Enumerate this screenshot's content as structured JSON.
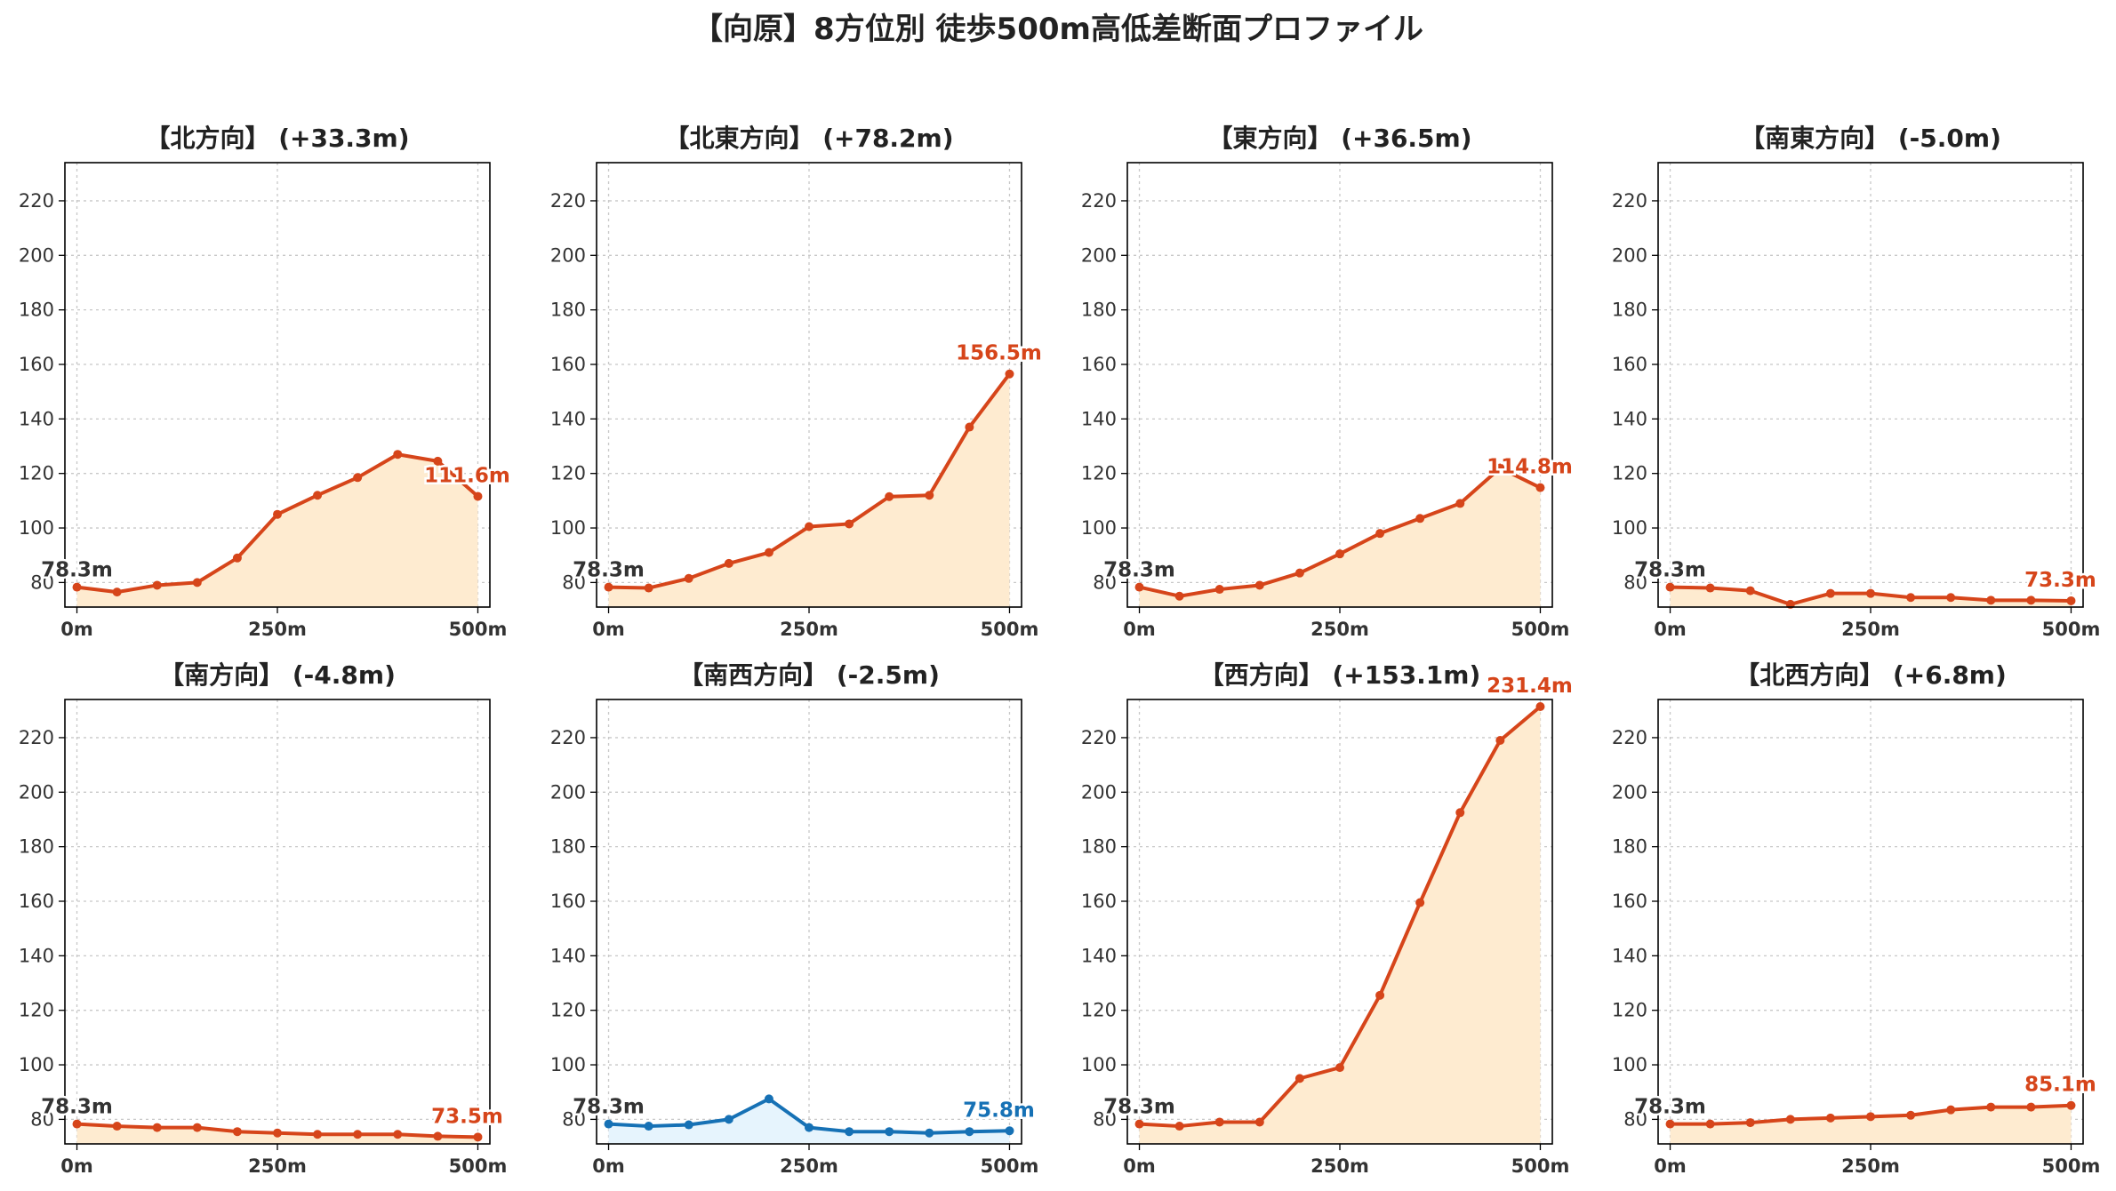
{
  "suptitle": "【向原】8方位別 徒歩500m高低差断面プロファイル",
  "colors": {
    "ascent_line": "#d6451a",
    "ascent_fill": "#feebd0",
    "descent_line": "#1671b5",
    "descent_fill": "#e6f4fd"
  },
  "chart_data": [
    {
      "type": "area",
      "title": "【北方向】 (+33.3m)",
      "x": [
        0,
        50,
        100,
        150,
        200,
        250,
        300,
        350,
        400,
        450,
        500
      ],
      "y": [
        78.3,
        76.5,
        79.0,
        80.0,
        89.0,
        105.0,
        112.0,
        118.5,
        127.0,
        124.5,
        111.6
      ],
      "start_label": "78.3m",
      "end_label": "111.6m",
      "color": "ascent",
      "xticks": [
        "0m",
        "250m",
        "500m"
      ],
      "yticks": [
        80,
        100,
        120,
        140,
        160,
        180,
        200,
        220
      ],
      "xlim": [
        -15,
        515
      ],
      "ylim": [
        71,
        234
      ],
      "grid": true
    },
    {
      "type": "area",
      "title": "【北東方向】 (+78.2m)",
      "x": [
        0,
        50,
        100,
        150,
        200,
        250,
        300,
        350,
        400,
        450,
        500
      ],
      "y": [
        78.3,
        78.0,
        81.5,
        87.0,
        91.0,
        100.5,
        101.5,
        111.5,
        112.0,
        137.0,
        156.5
      ],
      "start_label": "78.3m",
      "end_label": "156.5m",
      "color": "ascent",
      "xticks": [
        "0m",
        "250m",
        "500m"
      ],
      "yticks": [
        80,
        100,
        120,
        140,
        160,
        180,
        200,
        220
      ],
      "xlim": [
        -15,
        515
      ],
      "ylim": [
        71,
        234
      ],
      "grid": true
    },
    {
      "type": "area",
      "title": "【東方向】 (+36.5m)",
      "x": [
        0,
        50,
        100,
        150,
        200,
        250,
        300,
        350,
        400,
        450,
        500
      ],
      "y": [
        78.3,
        75.0,
        77.5,
        79.0,
        83.5,
        90.5,
        98.0,
        103.5,
        109.0,
        122.0,
        114.8
      ],
      "start_label": "78.3m",
      "end_label": "114.8m",
      "color": "ascent",
      "xticks": [
        "0m",
        "250m",
        "500m"
      ],
      "yticks": [
        80,
        100,
        120,
        140,
        160,
        180,
        200,
        220
      ],
      "xlim": [
        -15,
        515
      ],
      "ylim": [
        71,
        234
      ],
      "grid": true
    },
    {
      "type": "area",
      "title": "【南東方向】 (-5.0m)",
      "x": [
        0,
        50,
        100,
        150,
        200,
        250,
        300,
        350,
        400,
        450,
        500
      ],
      "y": [
        78.3,
        78.0,
        77.0,
        72.0,
        76.0,
        76.0,
        74.5,
        74.5,
        73.5,
        73.5,
        73.3
      ],
      "start_label": "78.3m",
      "end_label": "73.3m",
      "color": "ascent",
      "xticks": [
        "0m",
        "250m",
        "500m"
      ],
      "yticks": [
        80,
        100,
        120,
        140,
        160,
        180,
        200,
        220
      ],
      "xlim": [
        -15,
        515
      ],
      "ylim": [
        71,
        234
      ],
      "grid": true
    },
    {
      "type": "area",
      "title": "【南方向】 (-4.8m)",
      "x": [
        0,
        50,
        100,
        150,
        200,
        250,
        300,
        350,
        400,
        450,
        500
      ],
      "y": [
        78.3,
        77.5,
        77.0,
        77.0,
        75.5,
        75.0,
        74.5,
        74.5,
        74.5,
        73.8,
        73.5
      ],
      "start_label": "78.3m",
      "end_label": "73.5m",
      "color": "ascent",
      "xticks": [
        "0m",
        "250m",
        "500m"
      ],
      "yticks": [
        80,
        100,
        120,
        140,
        160,
        180,
        200,
        220
      ],
      "xlim": [
        -15,
        515
      ],
      "ylim": [
        71,
        234
      ],
      "grid": true
    },
    {
      "type": "area",
      "title": "【南西方向】 (-2.5m)",
      "x": [
        0,
        50,
        100,
        150,
        200,
        250,
        300,
        350,
        400,
        450,
        500
      ],
      "y": [
        78.3,
        77.5,
        78.0,
        80.0,
        87.5,
        77.0,
        75.5,
        75.5,
        75.0,
        75.5,
        75.8
      ],
      "start_label": "78.3m",
      "end_label": "75.8m",
      "color": "descent",
      "xticks": [
        "0m",
        "250m",
        "500m"
      ],
      "yticks": [
        80,
        100,
        120,
        140,
        160,
        180,
        200,
        220
      ],
      "xlim": [
        -15,
        515
      ],
      "ylim": [
        71,
        234
      ],
      "grid": true
    },
    {
      "type": "area",
      "title": "【西方向】 (+153.1m)",
      "x": [
        0,
        50,
        100,
        150,
        200,
        250,
        300,
        350,
        400,
        450,
        500
      ],
      "y": [
        78.3,
        77.5,
        79.0,
        79.0,
        95.0,
        99.0,
        125.5,
        159.5,
        192.5,
        219.0,
        231.4
      ],
      "start_label": "78.3m",
      "end_label": "231.4m",
      "color": "ascent",
      "xticks": [
        "0m",
        "250m",
        "500m"
      ],
      "yticks": [
        80,
        100,
        120,
        140,
        160,
        180,
        200,
        220
      ],
      "xlim": [
        -15,
        515
      ],
      "ylim": [
        71,
        234
      ],
      "grid": true
    },
    {
      "type": "area",
      "title": "【北西方向】 (+6.8m)",
      "x": [
        0,
        50,
        100,
        150,
        200,
        250,
        300,
        350,
        400,
        450,
        500
      ],
      "y": [
        78.3,
        78.3,
        78.8,
        80.0,
        80.5,
        81.0,
        81.5,
        83.5,
        84.5,
        84.5,
        85.1
      ],
      "start_label": "78.3m",
      "end_label": "85.1m",
      "color": "ascent",
      "xticks": [
        "0m",
        "250m",
        "500m"
      ],
      "yticks": [
        80,
        100,
        120,
        140,
        160,
        180,
        200,
        220
      ],
      "xlim": [
        -15,
        515
      ],
      "ylim": [
        71,
        234
      ],
      "grid": true
    }
  ]
}
